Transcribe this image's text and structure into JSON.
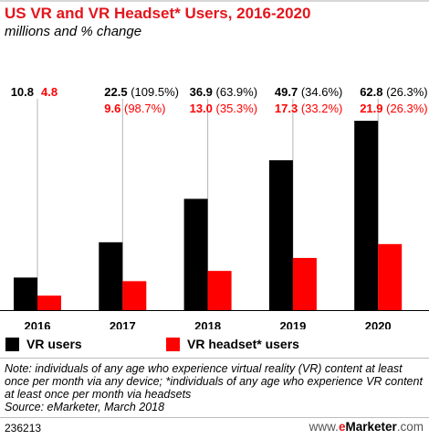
{
  "title": "US VR and VR Headset* Users, 2016-2020",
  "subtitle": "millions and % change",
  "colors": {
    "vr_users": "#000000",
    "vr_headset_users": "#ff0000",
    "title": "#e3161d"
  },
  "chart_data": {
    "type": "bar",
    "categories": [
      "2016",
      "2017",
      "2018",
      "2019",
      "2020"
    ],
    "series": [
      {
        "name": "VR users",
        "values": [
          10.8,
          22.5,
          36.9,
          49.7,
          62.8
        ],
        "value_labels": [
          "10.8",
          "22.5",
          "36.9",
          "49.7",
          "62.8"
        ],
        "change_labels": [
          "",
          "(109.5%)",
          "(63.9%)",
          "(34.6%)",
          "(26.3%)"
        ]
      },
      {
        "name": "VR headset* users",
        "values": [
          4.8,
          9.6,
          13.0,
          17.3,
          21.9
        ],
        "value_labels": [
          "4.8",
          "9.6",
          "13.0",
          "17.3",
          "21.9"
        ],
        "change_labels": [
          "",
          "(98.7%)",
          "(35.3%)",
          "(33.2%)",
          "(26.3%)"
        ]
      }
    ],
    "ylim": [
      0,
      62.8
    ],
    "grid": false,
    "legend_position": "bottom-left"
  },
  "notes": {
    "note": "Note: individuals of any age who experience virtual reality (VR) content at least once per month via any device; *individuals of any age who experience VR content at least once per month via headsets",
    "source": "Source: eMarketer, March 2018"
  },
  "footer": {
    "chart_id": "236213",
    "brand_prefix": "www.",
    "brand_e": "e",
    "brand_name": "Marketer",
    "brand_suffix": ".com"
  }
}
